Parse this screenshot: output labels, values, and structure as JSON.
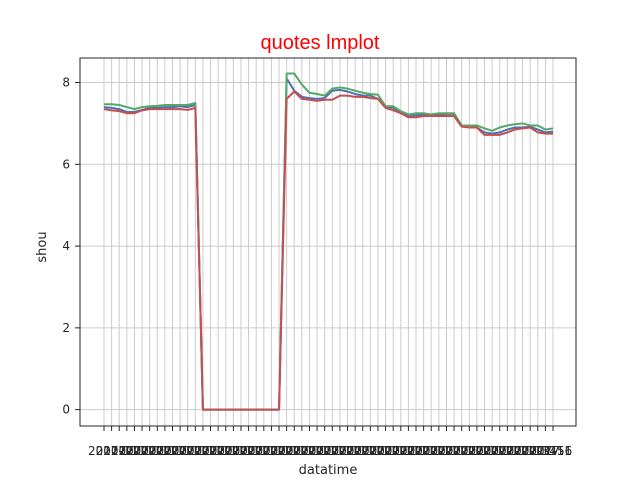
{
  "chart_data": {
    "type": "line",
    "title": "quotes lmplot",
    "xlabel": "datatime",
    "ylabel": "shou",
    "ylim": [
      -0.4,
      8.6
    ],
    "y_ticks": [
      0,
      2,
      4,
      6,
      8
    ],
    "x_tick_text": "2017-1",
    "x_tick_end_text": "3456",
    "grid": true,
    "colors": {
      "title": "#ff0000",
      "series": [
        "#4c72b0",
        "#55a868",
        "#c44e52"
      ]
    },
    "series": [
      {
        "values": [
          7.4,
          7.38,
          7.35,
          7.28,
          7.28,
          7.33,
          7.38,
          7.38,
          7.4,
          7.4,
          7.42,
          7.4,
          7.45,
          0.0,
          0.0,
          0.0,
          0.0,
          0.0,
          0.0,
          0.0,
          0.0,
          0.0,
          0.0,
          0.0,
          8.1,
          7.8,
          7.65,
          7.62,
          7.6,
          7.62,
          7.8,
          7.82,
          7.78,
          7.72,
          7.68,
          7.68,
          7.6,
          7.42,
          7.38,
          7.28,
          7.18,
          7.2,
          7.22,
          7.22,
          7.22,
          7.2,
          7.2,
          6.95,
          6.92,
          6.9,
          6.78,
          6.75,
          6.78,
          6.85,
          6.9,
          6.9,
          6.92,
          6.85,
          6.78,
          6.8
        ]
      },
      {
        "values": [
          7.47,
          7.47,
          7.45,
          7.4,
          7.35,
          7.4,
          7.42,
          7.43,
          7.45,
          7.45,
          7.45,
          7.45,
          7.5,
          0.0,
          0.0,
          0.0,
          0.0,
          0.0,
          0.0,
          0.0,
          0.0,
          0.0,
          0.0,
          0.0,
          8.22,
          8.22,
          7.95,
          7.75,
          7.72,
          7.68,
          7.85,
          7.88,
          7.85,
          7.8,
          7.75,
          7.72,
          7.7,
          7.42,
          7.42,
          7.3,
          7.22,
          7.25,
          7.25,
          7.22,
          7.25,
          7.25,
          7.25,
          6.95,
          6.95,
          6.95,
          6.88,
          6.82,
          6.9,
          6.95,
          6.98,
          7.0,
          6.95,
          6.95,
          6.85,
          6.88
        ]
      },
      {
        "values": [
          7.35,
          7.32,
          7.3,
          7.25,
          7.25,
          7.32,
          7.35,
          7.35,
          7.35,
          7.35,
          7.35,
          7.33,
          7.38,
          0.0,
          0.0,
          0.0,
          0.0,
          0.0,
          0.0,
          0.0,
          0.0,
          0.0,
          0.0,
          0.0,
          7.6,
          7.78,
          7.6,
          7.58,
          7.55,
          7.58,
          7.58,
          7.68,
          7.68,
          7.65,
          7.65,
          7.62,
          7.6,
          7.38,
          7.32,
          7.25,
          7.15,
          7.15,
          7.18,
          7.18,
          7.18,
          7.18,
          7.18,
          6.92,
          6.9,
          6.9,
          6.72,
          6.72,
          6.72,
          6.78,
          6.85,
          6.88,
          6.9,
          6.78,
          6.75,
          6.75
        ]
      }
    ]
  }
}
